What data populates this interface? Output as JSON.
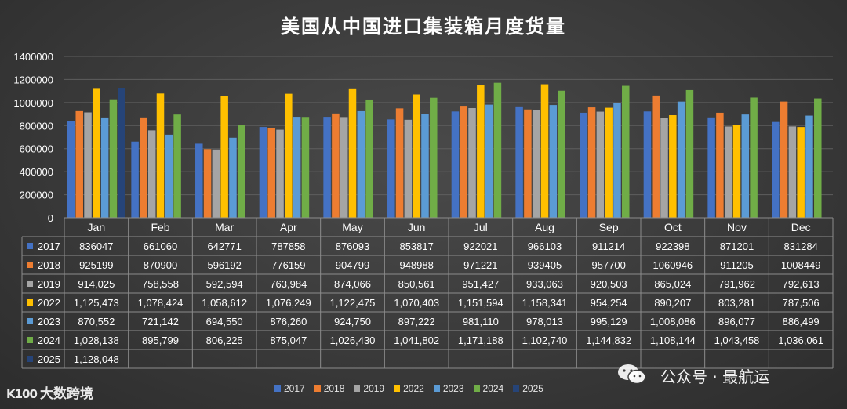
{
  "chart_data": {
    "type": "bar",
    "title": "美国从中国进口集装箱月度货量",
    "categories": [
      "Jan",
      "Feb",
      "Mar",
      "Apr",
      "May",
      "Jun",
      "Jul",
      "Aug",
      "Sep",
      "Oct",
      "Nov",
      "Dec"
    ],
    "ylim": [
      0,
      1400000
    ],
    "yticks": [
      "0",
      "200000",
      "400000",
      "600000",
      "800000",
      "1000000",
      "1200000",
      "1400000"
    ],
    "ytick_values": [
      0,
      200000,
      400000,
      600000,
      800000,
      1000000,
      1200000,
      1400000
    ],
    "legend_position": "bottom",
    "series": [
      {
        "name": "2017",
        "color": "#4472C4",
        "values": [
          836047,
          661060,
          642771,
          787858,
          876093,
          853817,
          922021,
          966103,
          911214,
          922398,
          871201,
          831284
        ],
        "labels": [
          "836047",
          "661060",
          "642771",
          "787858",
          "876093",
          "853817",
          "922021",
          "966103",
          "911214",
          "922398",
          "871201",
          "831284"
        ]
      },
      {
        "name": "2018",
        "color": "#ED7D31",
        "values": [
          925199,
          870900,
          596192,
          776159,
          904799,
          948988,
          971221,
          939405,
          957700,
          1060946,
          911205,
          1008449
        ],
        "labels": [
          "925199",
          "870900",
          "596192",
          "776159",
          "904799",
          "948988",
          "971221",
          "939405",
          "957700",
          "1060946",
          "911205",
          "1008449"
        ]
      },
      {
        "name": "2019",
        "color": "#A5A5A5",
        "values": [
          914025,
          758558,
          592594,
          763984,
          874066,
          850561,
          951427,
          933063,
          920503,
          865024,
          791962,
          792613
        ],
        "labels": [
          "914,025",
          "758,558",
          "592,594",
          "763,984",
          "874,066",
          "850,561",
          "951,427",
          "933,063",
          "920,503",
          "865,024",
          "791,962",
          "792,613"
        ]
      },
      {
        "name": "2022",
        "color": "#FFC000",
        "values": [
          1125473,
          1078424,
          1058612,
          1076249,
          1122475,
          1070403,
          1151594,
          1158341,
          954254,
          890207,
          803281,
          787506
        ],
        "labels": [
          "1,125,473",
          "1,078,424",
          "1,058,612",
          "1,076,249",
          "1,122,475",
          "1,070,403",
          "1,151,594",
          "1,158,341",
          "954,254",
          "890,207",
          "803,281",
          "787,506"
        ]
      },
      {
        "name": "2023",
        "color": "#5B9BD5",
        "values": [
          870552,
          721142,
          694550,
          876260,
          924750,
          897222,
          981110,
          978013,
          995129,
          1008086,
          896077,
          886499
        ],
        "labels": [
          "870,552",
          "721,142",
          "694,550",
          "876,260",
          "924,750",
          "897,222",
          "981,110",
          "978,013",
          "995,129",
          "1,008,086",
          "896,077",
          "886,499"
        ]
      },
      {
        "name": "2024",
        "color": "#70AD47",
        "values": [
          1028138,
          895799,
          806225,
          875047,
          1026430,
          1041802,
          1171188,
          1102740,
          1144832,
          1108144,
          1043458,
          1036061
        ],
        "labels": [
          "1,028,138",
          "895,799",
          "806,225",
          "875,047",
          "1,026,430",
          "1,041,802",
          "1,171,188",
          "1,102,740",
          "1,144,832",
          "1,108,144",
          "1,043,458",
          "1,036,061"
        ]
      },
      {
        "name": "2025",
        "color": "#264478",
        "values": [
          1128048,
          null,
          null,
          null,
          null,
          null,
          null,
          null,
          null,
          null,
          null,
          null
        ],
        "labels": [
          "1,128,048",
          "",
          "",
          "",
          "",
          "",
          "",
          "",
          "",
          "",
          "",
          ""
        ]
      }
    ]
  },
  "watermark": {
    "text": "公众号 · 最航运"
  },
  "brand": {
    "logo": "K100",
    "name": "大数跨境"
  }
}
